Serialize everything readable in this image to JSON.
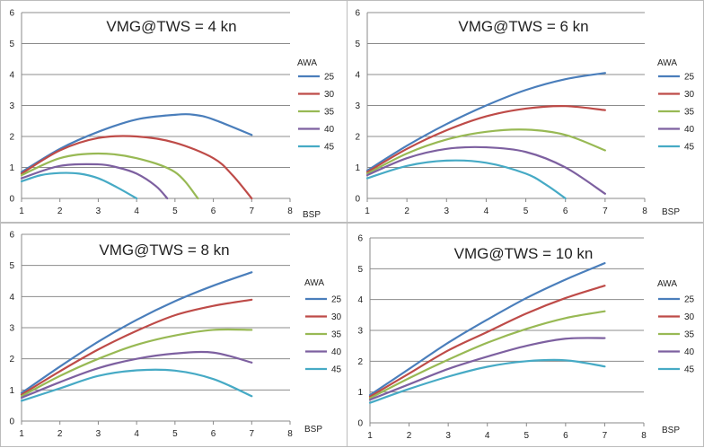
{
  "chart_data": [
    {
      "type": "line",
      "title": "VMG@TWS = 4 kn",
      "xlabel": "BSP",
      "ylabel": "",
      "xlim": [
        1,
        8
      ],
      "ylim": [
        0,
        6
      ],
      "xticks": [
        1,
        2,
        3,
        4,
        5,
        6,
        7,
        8
      ],
      "yticks": [
        0,
        1,
        2,
        3,
        4,
        5,
        6
      ],
      "legend_title": "AWA",
      "legend_position": "right",
      "series": [
        {
          "name": "25",
          "color": "#4a7ebb",
          "x": [
            1,
            2,
            3,
            4,
            5,
            5.5,
            6,
            7
          ],
          "y": [
            0.85,
            1.6,
            2.15,
            2.55,
            2.7,
            2.7,
            2.55,
            2.05
          ]
        },
        {
          "name": "30",
          "color": "#be4b48",
          "x": [
            1,
            2,
            3,
            4,
            5,
            6,
            6.5,
            7
          ],
          "y": [
            0.8,
            1.55,
            1.95,
            2.0,
            1.8,
            1.3,
            0.75,
            0.0
          ]
        },
        {
          "name": "35",
          "color": "#98b954",
          "x": [
            1,
            2,
            3,
            4,
            5,
            5.6
          ],
          "y": [
            0.75,
            1.3,
            1.45,
            1.3,
            0.85,
            0.0
          ]
        },
        {
          "name": "40",
          "color": "#7d60a0",
          "x": [
            1,
            2,
            3,
            3.5,
            4,
            4.5,
            4.8
          ],
          "y": [
            0.65,
            1.05,
            1.1,
            1.0,
            0.8,
            0.4,
            0.0
          ]
        },
        {
          "name": "45",
          "color": "#46aac5",
          "x": [
            1,
            1.5,
            2,
            2.5,
            3,
            3.5,
            4
          ],
          "y": [
            0.55,
            0.75,
            0.82,
            0.8,
            0.65,
            0.35,
            0.0
          ]
        }
      ]
    },
    {
      "type": "line",
      "title": "VMG@TWS = 6 kn",
      "xlabel": "BSP",
      "ylabel": "",
      "xlim": [
        1,
        8
      ],
      "ylim": [
        0,
        6
      ],
      "xticks": [
        1,
        2,
        3,
        4,
        5,
        6,
        7,
        8
      ],
      "yticks": [
        0,
        1,
        2,
        3,
        4,
        5,
        6
      ],
      "legend_title": "AWA",
      "legend_position": "right",
      "series": [
        {
          "name": "25",
          "color": "#4a7ebb",
          "x": [
            1,
            2,
            3,
            4,
            5,
            6,
            7
          ],
          "y": [
            0.9,
            1.7,
            2.4,
            3.0,
            3.5,
            3.85,
            4.05
          ]
        },
        {
          "name": "30",
          "color": "#be4b48",
          "x": [
            1,
            2,
            3,
            4,
            5,
            6,
            7
          ],
          "y": [
            0.85,
            1.6,
            2.2,
            2.65,
            2.9,
            2.98,
            2.85
          ]
        },
        {
          "name": "35",
          "color": "#98b954",
          "x": [
            1,
            2,
            3,
            4,
            5,
            6,
            7
          ],
          "y": [
            0.8,
            1.45,
            1.9,
            2.15,
            2.22,
            2.05,
            1.55
          ]
        },
        {
          "name": "40",
          "color": "#7d60a0",
          "x": [
            1,
            2,
            3,
            4,
            5,
            6,
            7
          ],
          "y": [
            0.75,
            1.3,
            1.6,
            1.65,
            1.5,
            1.0,
            0.15
          ]
        },
        {
          "name": "45",
          "color": "#46aac5",
          "x": [
            1,
            2,
            3,
            4,
            5,
            5.5,
            6
          ],
          "y": [
            0.65,
            1.05,
            1.22,
            1.15,
            0.8,
            0.45,
            0.0
          ]
        }
      ]
    },
    {
      "type": "line",
      "title": "VMG@TWS = 8 kn",
      "xlabel": "BSP",
      "ylabel": "",
      "xlim": [
        1,
        8
      ],
      "ylim": [
        0,
        6
      ],
      "xticks": [
        1,
        2,
        3,
        4,
        5,
        6,
        7,
        8
      ],
      "yticks": [
        0,
        1,
        2,
        3,
        4,
        5,
        6
      ],
      "legend_title": "AWA",
      "legend_position": "right",
      "series": [
        {
          "name": "25",
          "color": "#4a7ebb",
          "x": [
            1,
            2,
            3,
            4,
            5,
            6,
            7
          ],
          "y": [
            0.9,
            1.75,
            2.55,
            3.25,
            3.85,
            4.35,
            4.78
          ]
        },
        {
          "name": "30",
          "color": "#be4b48",
          "x": [
            1,
            2,
            3,
            4,
            5,
            6,
            7
          ],
          "y": [
            0.85,
            1.6,
            2.3,
            2.9,
            3.4,
            3.7,
            3.9
          ]
        },
        {
          "name": "35",
          "color": "#98b954",
          "x": [
            1,
            2,
            3,
            4,
            5,
            6,
            7
          ],
          "y": [
            0.8,
            1.45,
            2.0,
            2.45,
            2.75,
            2.93,
            2.93
          ]
        },
        {
          "name": "40",
          "color": "#7d60a0",
          "x": [
            1,
            2,
            3,
            4,
            5,
            6,
            7
          ],
          "y": [
            0.75,
            1.25,
            1.7,
            2.0,
            2.17,
            2.2,
            1.88
          ]
        },
        {
          "name": "45",
          "color": "#46aac5",
          "x": [
            1,
            2,
            3,
            4,
            5,
            6,
            7
          ],
          "y": [
            0.65,
            1.05,
            1.45,
            1.63,
            1.62,
            1.35,
            0.8
          ]
        }
      ]
    },
    {
      "type": "line",
      "title": "VMG@TWS = 10 kn",
      "xlabel": "BSP",
      "ylabel": "",
      "xlim": [
        1,
        8
      ],
      "ylim": [
        0,
        6
      ],
      "xticks": [
        1,
        2,
        3,
        4,
        5,
        6,
        7,
        8
      ],
      "yticks": [
        0,
        1,
        2,
        3,
        4,
        5,
        6
      ],
      "legend_title": "AWA",
      "legend_position": "right",
      "series": [
        {
          "name": "25",
          "color": "#4a7ebb",
          "x": [
            1,
            2,
            3,
            4,
            5,
            6,
            7
          ],
          "y": [
            0.9,
            1.75,
            2.6,
            3.35,
            4.05,
            4.65,
            5.18
          ]
        },
        {
          "name": "30",
          "color": "#be4b48",
          "x": [
            1,
            2,
            3,
            4,
            5,
            6,
            7
          ],
          "y": [
            0.85,
            1.6,
            2.35,
            2.95,
            3.55,
            4.05,
            4.45
          ]
        },
        {
          "name": "35",
          "color": "#98b954",
          "x": [
            1,
            2,
            3,
            4,
            5,
            6,
            7
          ],
          "y": [
            0.8,
            1.45,
            2.05,
            2.6,
            3.05,
            3.4,
            3.62
          ]
        },
        {
          "name": "40",
          "color": "#7d60a0",
          "x": [
            1,
            2,
            3,
            4,
            5,
            6,
            7
          ],
          "y": [
            0.75,
            1.25,
            1.75,
            2.15,
            2.5,
            2.73,
            2.75
          ]
        },
        {
          "name": "45",
          "color": "#46aac5",
          "x": [
            1,
            2,
            3,
            4,
            5,
            6,
            7
          ],
          "y": [
            0.65,
            1.1,
            1.5,
            1.82,
            2.0,
            2.03,
            1.83
          ]
        }
      ]
    }
  ]
}
